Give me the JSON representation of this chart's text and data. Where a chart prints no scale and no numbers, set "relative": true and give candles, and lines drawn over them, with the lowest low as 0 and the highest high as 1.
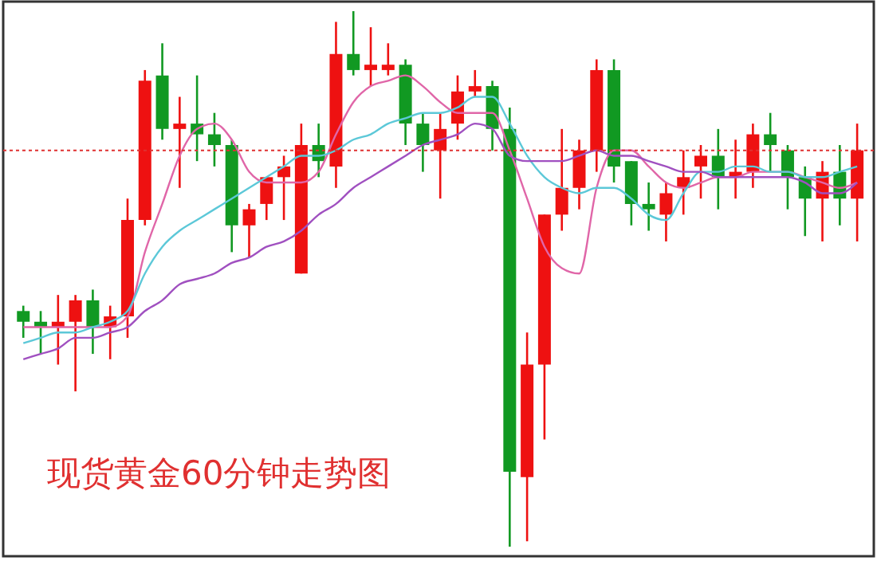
{
  "chart_data": {
    "type": "candlestick",
    "title": "现货黄金60分钟走势图",
    "relative": true,
    "categories": [
      null,
      null,
      null,
      null,
      null,
      null,
      null,
      null,
      null,
      null,
      null,
      null,
      null,
      null,
      null,
      null,
      null,
      null,
      null,
      null,
      null,
      null,
      null,
      null,
      null,
      null,
      null,
      null,
      null,
      null,
      null,
      null,
      null,
      null,
      null,
      null,
      null,
      null,
      null,
      null,
      null,
      null,
      null,
      null,
      null,
      null,
      null,
      null,
      null
    ],
    "ohlc": [
      [
        0.44,
        0.45,
        0.39,
        0.42
      ],
      [
        0.42,
        0.44,
        0.36,
        0.41
      ],
      [
        0.41,
        0.47,
        0.34,
        0.42
      ],
      [
        0.42,
        0.47,
        0.29,
        0.46
      ],
      [
        0.46,
        0.48,
        0.36,
        0.41
      ],
      [
        0.41,
        0.45,
        0.35,
        0.43
      ],
      [
        0.43,
        0.65,
        0.39,
        0.61
      ],
      [
        0.61,
        0.89,
        0.6,
        0.87
      ],
      [
        0.88,
        0.94,
        0.76,
        0.78
      ],
      [
        0.78,
        0.84,
        0.67,
        0.79
      ],
      [
        0.79,
        0.88,
        0.72,
        0.77
      ],
      [
        0.77,
        0.81,
        0.71,
        0.75
      ],
      [
        0.75,
        0.76,
        0.55,
        0.6
      ],
      [
        0.6,
        0.64,
        0.54,
        0.63
      ],
      [
        0.64,
        0.69,
        0.61,
        0.69
      ],
      [
        0.69,
        0.73,
        0.61,
        0.71
      ],
      [
        0.51,
        0.79,
        0.51,
        0.75
      ],
      [
        0.75,
        0.79,
        0.69,
        0.72
      ],
      [
        0.71,
        0.98,
        0.67,
        0.92
      ],
      [
        0.92,
        1,
        0.88,
        0.89
      ],
      [
        0.89,
        0.97,
        0.86,
        0.9
      ],
      [
        0.89,
        0.94,
        0.88,
        0.9
      ],
      [
        0.9,
        0.91,
        0.75,
        0.79
      ],
      [
        0.79,
        0.81,
        0.7,
        0.75
      ],
      [
        0.74,
        0.81,
        0.65,
        0.78
      ],
      [
        0.79,
        0.88,
        0.76,
        0.85
      ],
      [
        0.85,
        0.89,
        0.84,
        0.86
      ],
      [
        0.86,
        0.87,
        0.74,
        0.78
      ],
      [
        0.78,
        0.82,
        0,
        0.14
      ],
      [
        0.13,
        0.4,
        0.01,
        0.34
      ],
      [
        0.34,
        0.62,
        0.2,
        0.62
      ],
      [
        0.62,
        0.78,
        0.59,
        0.67
      ],
      [
        0.67,
        0.76,
        0.63,
        0.74
      ],
      [
        0.74,
        0.91,
        0.7,
        0.89
      ],
      [
        0.89,
        0.91,
        0.68,
        0.71
      ],
      [
        0.72,
        0.72,
        0.6,
        0.64
      ],
      [
        0.64,
        0.68,
        0.59,
        0.63
      ],
      [
        0.62,
        0.68,
        0.57,
        0.66
      ],
      [
        0.67,
        0.74,
        0.62,
        0.69
      ],
      [
        0.71,
        0.75,
        0.65,
        0.73
      ],
      [
        0.73,
        0.78,
        0.63,
        0.69
      ],
      [
        0.69,
        0.76,
        0.65,
        0.7
      ],
      [
        0.7,
        0.79,
        0.67,
        0.77
      ],
      [
        0.77,
        0.81,
        0.7,
        0.75
      ],
      [
        0.74,
        0.75,
        0.63,
        0.69
      ],
      [
        0.69,
        0.71,
        0.58,
        0.65
      ],
      [
        0.65,
        0.72,
        0.57,
        0.7
      ],
      [
        0.7,
        0.75,
        0.6,
        0.65
      ],
      [
        0.65,
        0.79,
        0.57,
        0.74
      ]
    ],
    "series": [
      {
        "type": "line",
        "color": "#e066a8",
        "values": [
          0.41,
          0.41,
          0.41,
          0.41,
          0.41,
          0.41,
          0.43,
          0.55,
          0.64,
          0.73,
          0.78,
          0.79,
          0.76,
          0.7,
          0.68,
          0.68,
          0.68,
          0.7,
          0.77,
          0.83,
          0.86,
          0.87,
          0.88,
          0.86,
          0.83,
          0.81,
          0.81,
          0.81,
          0.74,
          0.65,
          0.56,
          0.52,
          0.51,
          0.67,
          0.74,
          0.74,
          0.71,
          0.68,
          0.67,
          0.68,
          0.69,
          0.69,
          0.7,
          0.7,
          0.7,
          0.69,
          0.68,
          0.67,
          0.68
        ]
      },
      {
        "type": "line",
        "color": "#5cc8d8",
        "values": [
          0.38,
          0.39,
          0.4,
          0.4,
          0.41,
          0.42,
          0.44,
          0.51,
          0.56,
          0.59,
          0.61,
          0.63,
          0.65,
          0.67,
          0.69,
          0.71,
          0.73,
          0.73,
          0.74,
          0.76,
          0.77,
          0.79,
          0.8,
          0.81,
          0.81,
          0.82,
          0.84,
          0.84,
          0.79,
          0.73,
          0.69,
          0.67,
          0.66,
          0.67,
          0.67,
          0.65,
          0.62,
          0.61,
          0.66,
          0.7,
          0.7,
          0.71,
          0.71,
          0.7,
          0.7,
          0.69,
          0.69,
          0.7,
          0.71
        ]
      },
      {
        "type": "line",
        "color": "#a050c0",
        "values": [
          0.35,
          0.36,
          0.37,
          0.39,
          0.39,
          0.4,
          0.41,
          0.44,
          0.46,
          0.49,
          0.5,
          0.51,
          0.53,
          0.54,
          0.56,
          0.57,
          0.59,
          0.62,
          0.64,
          0.67,
          0.69,
          0.71,
          0.73,
          0.75,
          0.76,
          0.77,
          0.79,
          0.78,
          0.73,
          0.72,
          0.72,
          0.72,
          0.73,
          0.74,
          0.73,
          0.73,
          0.72,
          0.71,
          0.7,
          0.7,
          0.69,
          0.69,
          0.69,
          0.69,
          0.69,
          0.68,
          0.66,
          0.66,
          0.68
        ]
      }
    ],
    "ref_lines": [
      {
        "axis": "y",
        "value": 0.74,
        "color": "#e03030",
        "line_style": "dotted"
      }
    ]
  }
}
